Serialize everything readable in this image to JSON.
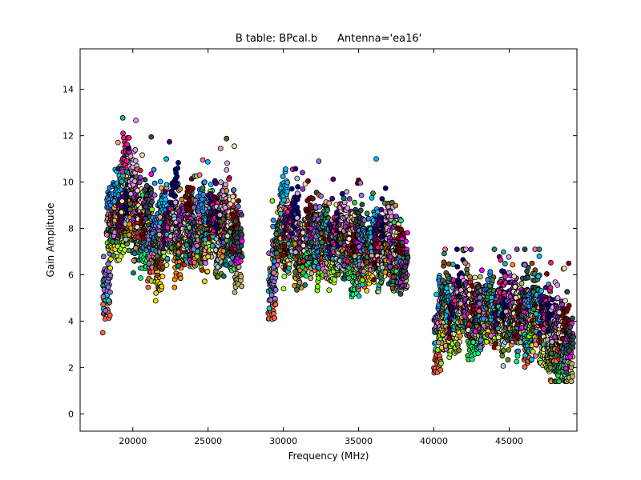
{
  "chart_data": {
    "type": "scatter",
    "title": "B table: BPcal.b      Antenna='ea16'",
    "xlabel": "Frequency (MHz)",
    "ylabel": "Gain Amplitude",
    "xlim": [
      16500,
      49500
    ],
    "ylim": [
      -0.75,
      15.75
    ],
    "xticks": [
      20000,
      25000,
      30000,
      35000,
      40000,
      45000
    ],
    "yticks": [
      0,
      2,
      4,
      6,
      8,
      10,
      12,
      14
    ],
    "grid": false,
    "legend": "none",
    "marker_outline": "#000000",
    "palette": [
      "#ff6347",
      "#00ced1",
      "#9370db",
      "#7fff00",
      "#ff69b4",
      "#1e90ff",
      "#ffd700",
      "#8b4513",
      "#2e8b57",
      "#da70d6",
      "#ffa07a",
      "#00bfff",
      "#adff2f",
      "#8b0000",
      "#4b0082",
      "#f0e68c",
      "#20b2aa",
      "#ff1493",
      "#6b8e23",
      "#b0c4de",
      "#000080",
      "#ff8c00",
      "#556b2f",
      "#dda0dd",
      "#008080",
      "#cd853f",
      "#9932cc",
      "#32cd32",
      "#dc143c",
      "#f5deb3",
      "#00ff7f",
      "#4682b4",
      "#800000",
      "#bdb76b",
      "#ff00ff",
      "#2f4f4f"
    ],
    "bands": [
      {
        "x": [
          18000,
          26000
        ],
        "y": [
          3.5,
          14.5
        ]
      },
      {
        "x": [
          29000,
          37000
        ],
        "y": [
          2.8,
          11.0
        ]
      },
      {
        "x": [
          40000,
          48000
        ],
        "y": [
          1.4,
          7.1
        ]
      }
    ],
    "points_per_spw": 24,
    "channel_spacing_mhz": 125,
    "spw_groups": [
      {
        "x0": 18000,
        "y": [
          5.6,
          8.5,
          7.8,
          9.3,
          8.2,
          10.4,
          8.9,
          9.7,
          8.0,
          8.6,
          7.7,
          8.8
        ]
      },
      {
        "x0": 21000,
        "y": [
          7.0,
          7.3,
          6.5,
          8.6,
          7.7,
          8.1,
          8.9,
          7.2,
          7.9,
          7.5,
          8.3,
          7.1
        ]
      },
      {
        "x0": 24000,
        "y": [
          7.6,
          8.4,
          7.2,
          7.9,
          8.8,
          8.1,
          7.4,
          8.6,
          7.7,
          8.3,
          7.5,
          7.0
        ]
      },
      {
        "x0": 29000,
        "y": [
          5.5,
          6.7,
          7.8,
          8.9,
          7.0,
          7.4,
          8.0,
          7.3,
          6.8,
          7.5,
          7.7,
          7.2
        ]
      },
      {
        "x0": 32000,
        "y": [
          7.4,
          7.0,
          8.0,
          7.2,
          6.9,
          7.6,
          7.1,
          7.8,
          6.9,
          7.3,
          6.8,
          7.4
        ]
      },
      {
        "x0": 35000,
        "y": [
          6.6,
          7.0,
          6.8,
          7.4,
          6.9,
          6.5,
          7.2,
          7.6,
          6.8,
          6.7,
          6.4,
          6.1
        ]
      },
      {
        "x0": 40000,
        "y": [
          3.2,
          4.1,
          4.8,
          4.4,
          3.9,
          4.5,
          4.9,
          5.0,
          4.6,
          4.2,
          3.9,
          4.6
        ]
      },
      {
        "x0": 43000,
        "y": [
          3.9,
          4.7,
          4.5,
          4.1,
          4.3,
          4.7,
          3.8,
          4.0,
          4.3,
          4.0,
          3.9,
          4.4
        ]
      },
      {
        "x0": 46000,
        "y": [
          3.6,
          4.4,
          4.6,
          4.1,
          3.7,
          3.6,
          3.2,
          3.5,
          3.3,
          3.0,
          3.1,
          2.6
        ]
      }
    ]
  }
}
